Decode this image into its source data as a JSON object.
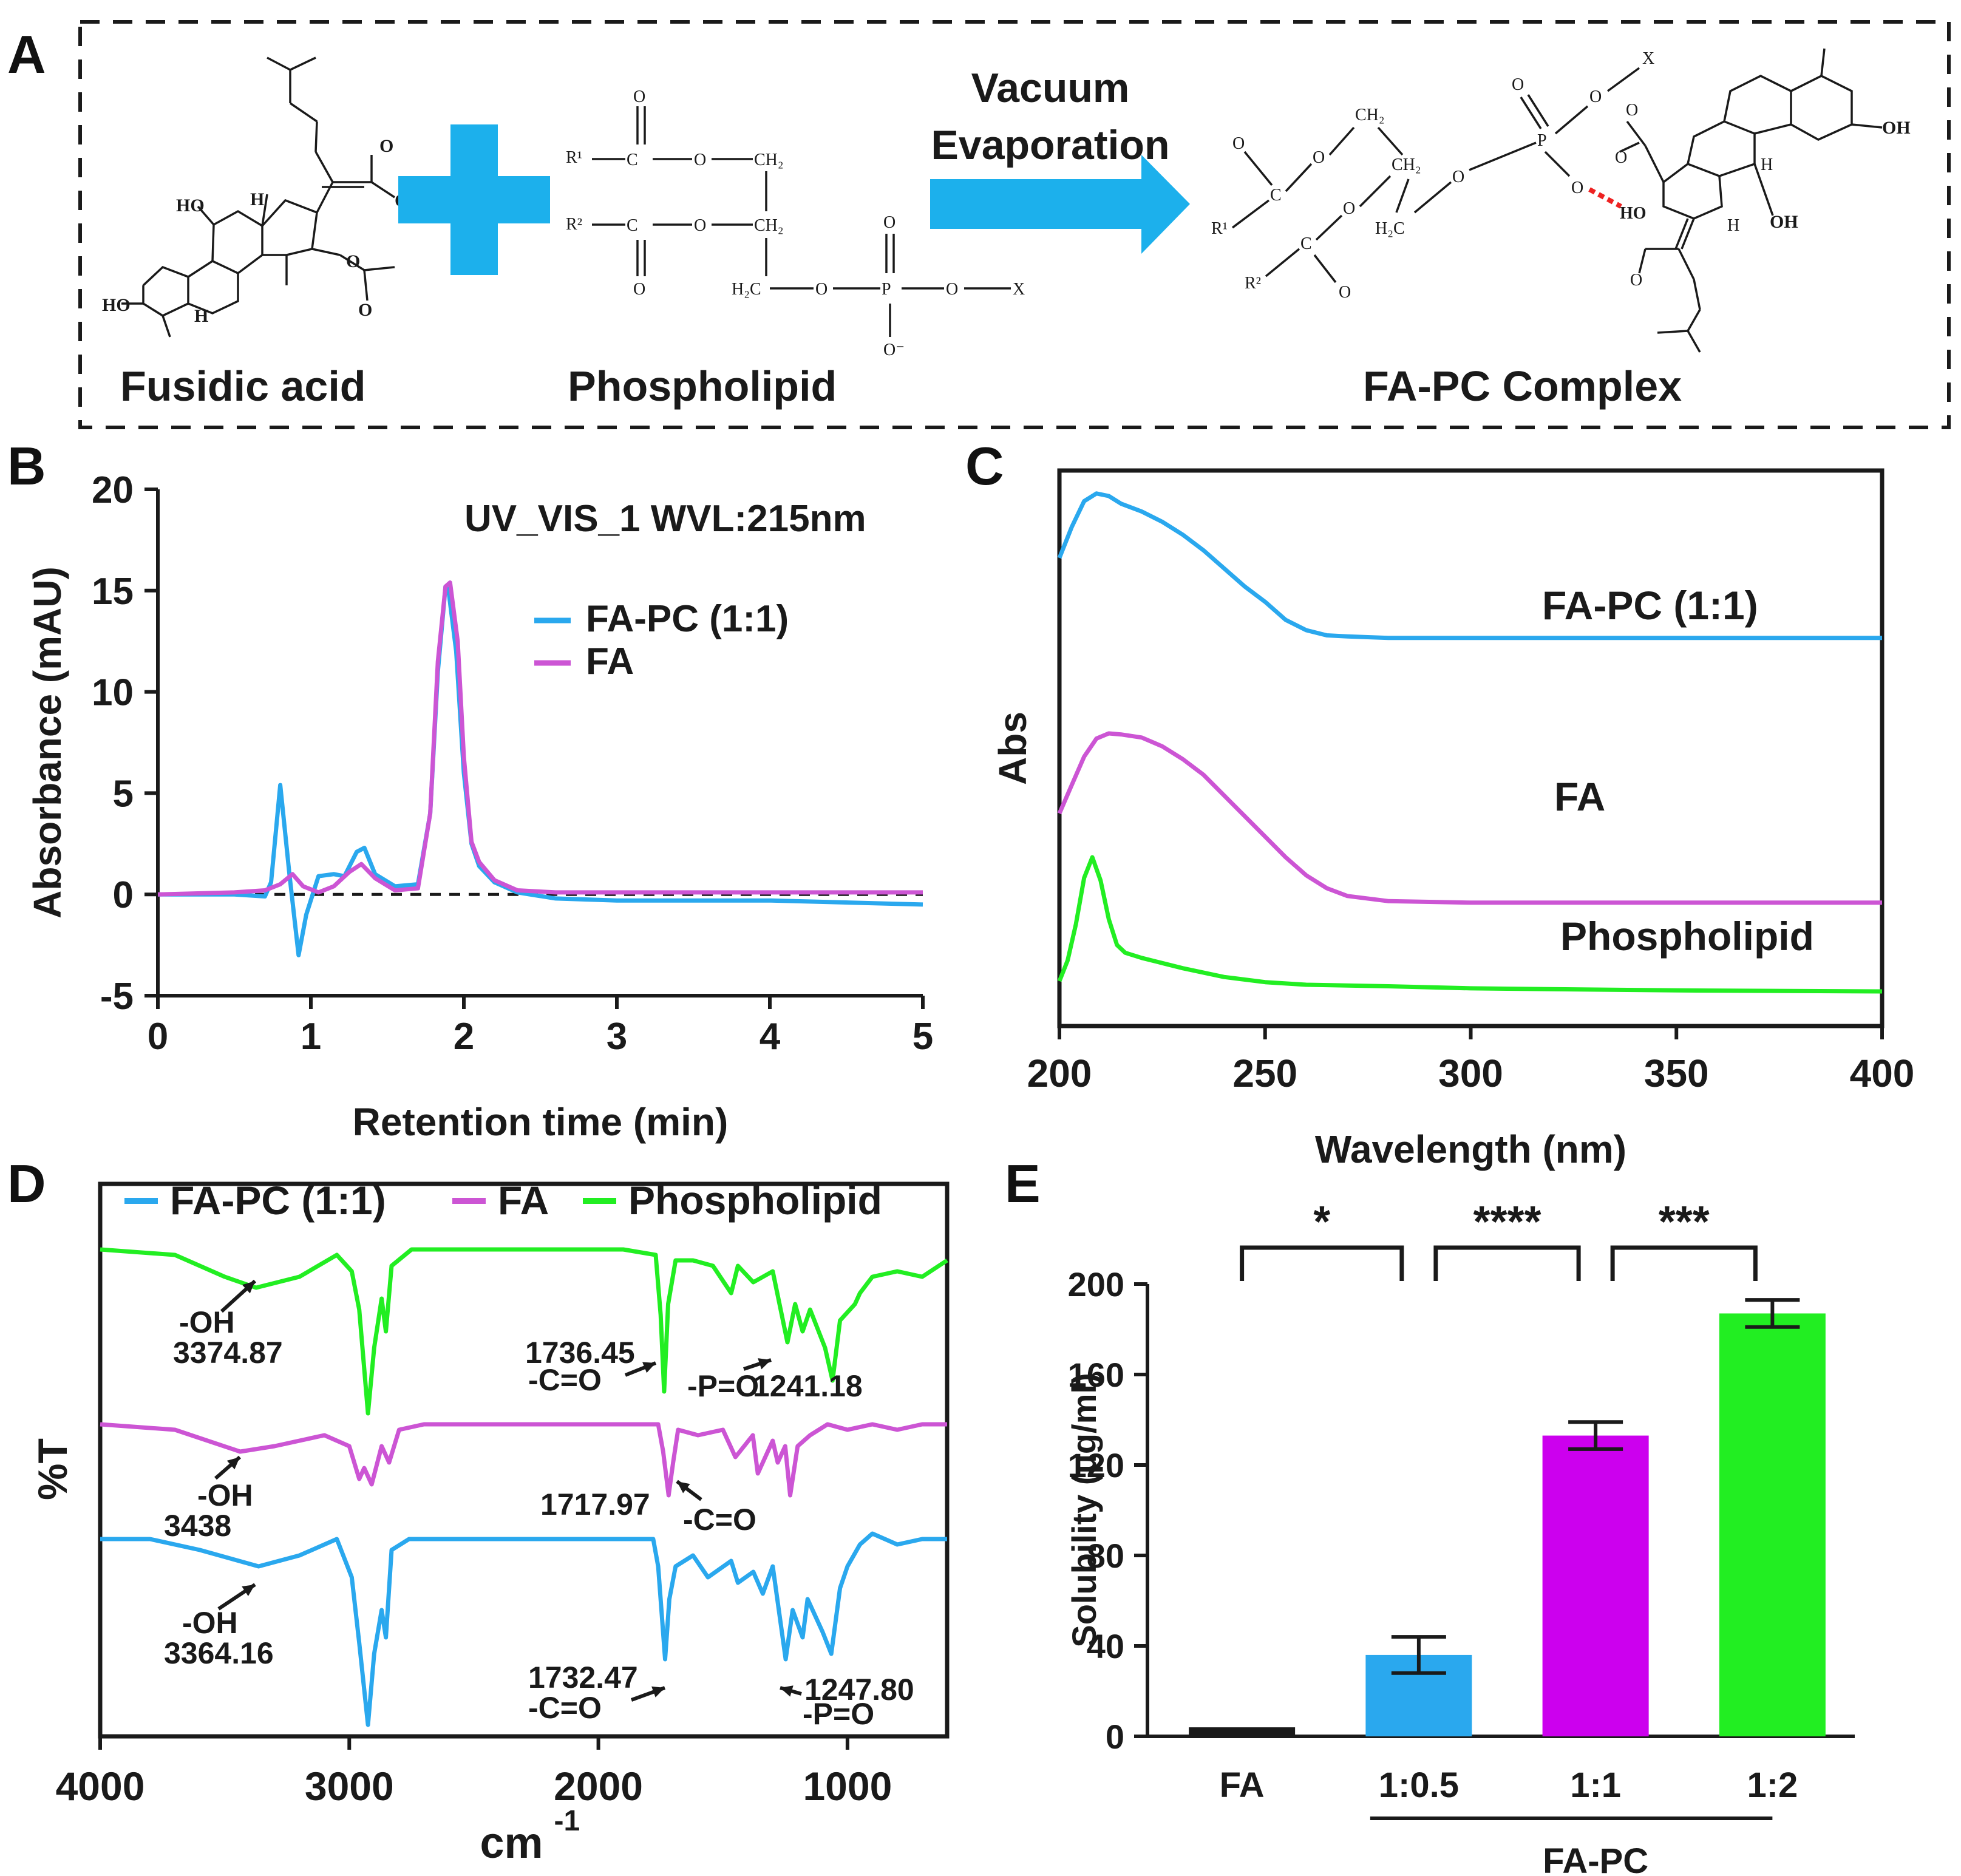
{
  "panels": {
    "A": {
      "letter": "A",
      "arrow_label_line1": "Vacuum",
      "arrow_label_line2": "Evaporation",
      "label_fa": "Fusidic acid",
      "label_pl": "Phospholipid",
      "label_complex": "FA-PC Complex",
      "chem": {
        "r1": "R¹",
        "r2": "R²",
        "c": "C",
        "o": "O",
        "ch2": "CH₂",
        "h2c": "H₂C",
        "p": "P",
        "x": "X",
        "o_minus": "O⁻",
        "oh": "OH",
        "ho": "HO",
        "h": "H"
      }
    },
    "B": {
      "letter": "B"
    },
    "C": {
      "letter": "C"
    },
    "D": {
      "letter": "D"
    },
    "E": {
      "letter": "E"
    },
    "colors": {
      "fapc": "#2aa8ee",
      "fa": "#cc55d4",
      "pl": "#22ee22",
      "fa_bar": "#cc00ee",
      "black": "#1a1a1a",
      "bond_red": "#ee2222"
    }
  },
  "chart_data": [
    {
      "panel": "B",
      "type": "line",
      "annotation": "UV_VIS_1 WVL:215nm",
      "xlabel": "Retention time (min)",
      "ylabel": "Absorbance (mAU)",
      "xlim": [
        0,
        5
      ],
      "ylim": [
        -5,
        20
      ],
      "xticks": [
        "0",
        "1",
        "2",
        "3",
        "4",
        "5"
      ],
      "yticks": [
        "-5",
        "0",
        "5",
        "10",
        "15",
        "20"
      ],
      "series": [
        {
          "name": "FA-PC (1:1)",
          "color": "#2aa8ee",
          "x": [
            0,
            0.5,
            0.7,
            0.74,
            0.8,
            0.86,
            0.92,
            0.97,
            1.05,
            1.15,
            1.22,
            1.3,
            1.35,
            1.42,
            1.55,
            1.7,
            1.78,
            1.83,
            1.88,
            1.9,
            1.95,
            2.0,
            2.05,
            2.1,
            2.2,
            2.35,
            2.6,
            3.0,
            3.5,
            4.0,
            4.5,
            5.0
          ],
          "y": [
            0,
            0,
            -0.1,
            0.6,
            5.4,
            1.0,
            -3.0,
            -1.0,
            0.9,
            1.0,
            0.9,
            2.1,
            2.3,
            1.0,
            0.4,
            0.5,
            4.0,
            11.0,
            15.2,
            15.0,
            12.0,
            6.0,
            2.5,
            1.4,
            0.6,
            0.1,
            -0.2,
            -0.3,
            -0.3,
            -0.3,
            -0.4,
            -0.5
          ]
        },
        {
          "name": "FA",
          "color": "#cc55d4",
          "x": [
            0,
            0.5,
            0.7,
            0.8,
            0.88,
            0.95,
            1.05,
            1.15,
            1.25,
            1.33,
            1.42,
            1.55,
            1.7,
            1.78,
            1.83,
            1.88,
            1.91,
            1.96,
            2.0,
            2.05,
            2.1,
            2.2,
            2.35,
            2.6,
            3.0,
            3.5,
            4.0,
            4.5,
            5.0
          ],
          "y": [
            0,
            0.1,
            0.2,
            0.5,
            1.0,
            0.4,
            0.1,
            0.4,
            1.1,
            1.5,
            0.8,
            0.2,
            0.3,
            4.0,
            11.5,
            15.2,
            15.4,
            12.5,
            6.8,
            2.6,
            1.6,
            0.7,
            0.2,
            0.1,
            0.1,
            0.1,
            0.1,
            0.1,
            0.1
          ]
        }
      ],
      "baseline": {
        "y": 0,
        "style": "dashed"
      }
    },
    {
      "panel": "C",
      "type": "line",
      "xlabel": "Wavelength (nm)",
      "ylabel": "Abs",
      "xlim": [
        200,
        400
      ],
      "ylim": [
        0,
        10
      ],
      "xticks": [
        "200",
        "250",
        "300",
        "350",
        "400"
      ],
      "series": [
        {
          "name": "FA-PC (1:1)",
          "color": "#2aa8ee",
          "x": [
            200,
            203,
            206,
            209,
            212,
            215,
            220,
            225,
            230,
            235,
            240,
            245,
            250,
            255,
            260,
            265,
            270,
            280,
            300,
            350,
            400
          ],
          "y": [
            8.6,
            9.2,
            9.7,
            9.85,
            9.8,
            9.65,
            9.5,
            9.3,
            9.05,
            8.75,
            8.4,
            8.05,
            7.75,
            7.4,
            7.2,
            7.1,
            7.08,
            7.05,
            7.05,
            7.05,
            7.05
          ]
        },
        {
          "name": "FA",
          "color": "#cc55d4",
          "x": [
            200,
            203,
            206,
            209,
            212,
            215,
            220,
            225,
            230,
            235,
            240,
            245,
            250,
            255,
            260,
            265,
            270,
            280,
            300,
            350,
            400
          ],
          "y": [
            3.65,
            4.2,
            4.75,
            5.1,
            5.2,
            5.18,
            5.12,
            4.95,
            4.7,
            4.4,
            4.0,
            3.6,
            3.2,
            2.8,
            2.45,
            2.2,
            2.05,
            1.95,
            1.92,
            1.92,
            1.92
          ]
        },
        {
          "name": "Phospholipid",
          "color": "#22ee22",
          "x": [
            200,
            202,
            204,
            206,
            208,
            210,
            212,
            214,
            216,
            220,
            225,
            230,
            240,
            250,
            260,
            280,
            300,
            350,
            400
          ],
          "y": [
            0.4,
            0.8,
            1.5,
            2.4,
            2.8,
            2.35,
            1.6,
            1.1,
            0.95,
            0.85,
            0.75,
            0.65,
            0.48,
            0.38,
            0.33,
            0.3,
            0.26,
            0.22,
            0.2
          ]
        }
      ],
      "curve_labels": [
        "FA-PC (1:1)",
        "FA",
        "Phospholipid"
      ]
    },
    {
      "panel": "D",
      "type": "line",
      "xlabel": "cm",
      "xlabel_sup": "-1",
      "ylabel": "%T",
      "xlim": [
        4000,
        600
      ],
      "ylim": [
        0,
        100
      ],
      "xticks": [
        "4000",
        "3000",
        "2000",
        "1000"
      ],
      "legend": [
        "FA-PC (1:1)",
        "FA",
        "Phospholipid"
      ],
      "series": [
        {
          "name": "Phospholipid",
          "color": "#22ee22",
          "x": [
            4000,
            3700,
            3500,
            3374,
            3200,
            3050,
            2990,
            2960,
            2925,
            2900,
            2870,
            2853,
            2830,
            2750,
            2500,
            2200,
            1900,
            1770,
            1750,
            1736,
            1720,
            1690,
            1620,
            1540,
            1467,
            1440,
            1378,
            1300,
            1241,
            1210,
            1180,
            1150,
            1090,
            1060,
            1030,
            970,
            950,
            900,
            800,
            700,
            600
          ],
          "y": [
            88,
            87,
            83,
            81,
            83,
            87,
            84,
            77,
            58,
            70,
            79,
            73,
            85,
            88,
            88,
            88,
            88,
            87,
            76,
            62,
            78,
            86,
            86,
            85,
            80,
            85,
            82,
            84,
            71,
            78,
            73,
            77,
            70,
            64,
            75,
            78,
            80,
            83,
            84,
            83,
            86
          ]
        },
        {
          "name": "FA",
          "color": "#cc55d4",
          "x": [
            4000,
            3700,
            3438,
            3300,
            3100,
            3000,
            2960,
            2940,
            2910,
            2870,
            2840,
            2800,
            2700,
            2400,
            2100,
            1850,
            1760,
            1740,
            1718,
            1700,
            1680,
            1600,
            1500,
            1450,
            1380,
            1360,
            1300,
            1280,
            1250,
            1230,
            1200,
            1150,
            1080,
            1000,
            900,
            800,
            700,
            600
          ],
          "y": [
            56,
            55,
            51,
            52,
            54,
            52,
            46,
            48,
            45,
            52,
            49,
            55,
            56,
            56,
            56,
            56,
            56,
            51,
            43,
            49,
            55,
            54,
            55,
            50,
            54,
            47,
            53,
            49,
            52,
            43,
            52,
            54,
            56,
            55,
            56,
            55,
            56,
            56
          ]
        },
        {
          "name": "FA-PC (1:1)",
          "color": "#2aa8ee",
          "x": [
            4000,
            3800,
            3600,
            3364,
            3200,
            3050,
            2990,
            2960,
            2925,
            2900,
            2870,
            2853,
            2830,
            2760,
            2500,
            2200,
            1900,
            1780,
            1760,
            1732,
            1715,
            1690,
            1620,
            1560,
            1467,
            1440,
            1378,
            1340,
            1300,
            1248,
            1220,
            1180,
            1160,
            1100,
            1065,
            1030,
            1000,
            950,
            900,
            800,
            700,
            600
          ],
          "y": [
            35,
            35,
            33,
            30,
            32,
            35,
            28,
            16,
            1,
            14,
            22,
            17,
            33,
            35,
            35,
            35,
            35,
            35,
            30,
            13,
            24,
            30,
            32,
            28,
            31,
            27,
            29,
            25,
            30,
            13,
            22,
            17,
            24,
            18,
            14,
            26,
            30,
            34,
            36,
            34,
            35,
            35
          ]
        }
      ],
      "annotations": [
        {
          "text": [
            "-OH",
            "3374.87"
          ]
        },
        {
          "text": [
            "1736.45",
            "-C=O"
          ]
        },
        {
          "text": [
            "-P=O",
            "1241.18"
          ]
        },
        {
          "text": [
            "-OH",
            "3438"
          ]
        },
        {
          "text": [
            "1717.97"
          ]
        },
        {
          "text": [
            "-C=O"
          ]
        },
        {
          "text": [
            "-OH",
            "3364.16"
          ]
        },
        {
          "text": [
            "1732.47",
            "-C=O"
          ]
        },
        {
          "text": [
            "1247.80",
            "-P=O"
          ]
        }
      ]
    },
    {
      "panel": "E",
      "type": "bar",
      "ylabel": "Solubility (µg/ml)",
      "ylim": [
        0,
        200
      ],
      "yticks": [
        "0",
        "40",
        "80",
        "120",
        "160",
        "200"
      ],
      "categories": [
        "FA",
        "1:0.5",
        "1:1",
        "1:2"
      ],
      "values": [
        4,
        36,
        133,
        187
      ],
      "errors": [
        0,
        8,
        6,
        6
      ],
      "colors": [
        "#1a1a1a",
        "#2aa8ee",
        "#cc00ee",
        "#22ee22"
      ],
      "group_label": "FA-PC",
      "significance": [
        {
          "pair": [
            "FA",
            "1:0.5"
          ],
          "stars": "*"
        },
        {
          "pair": [
            "1:0.5",
            "1:1"
          ],
          "stars": "****"
        },
        {
          "pair": [
            "1:1",
            "1:2"
          ],
          "stars": "***"
        }
      ]
    }
  ]
}
